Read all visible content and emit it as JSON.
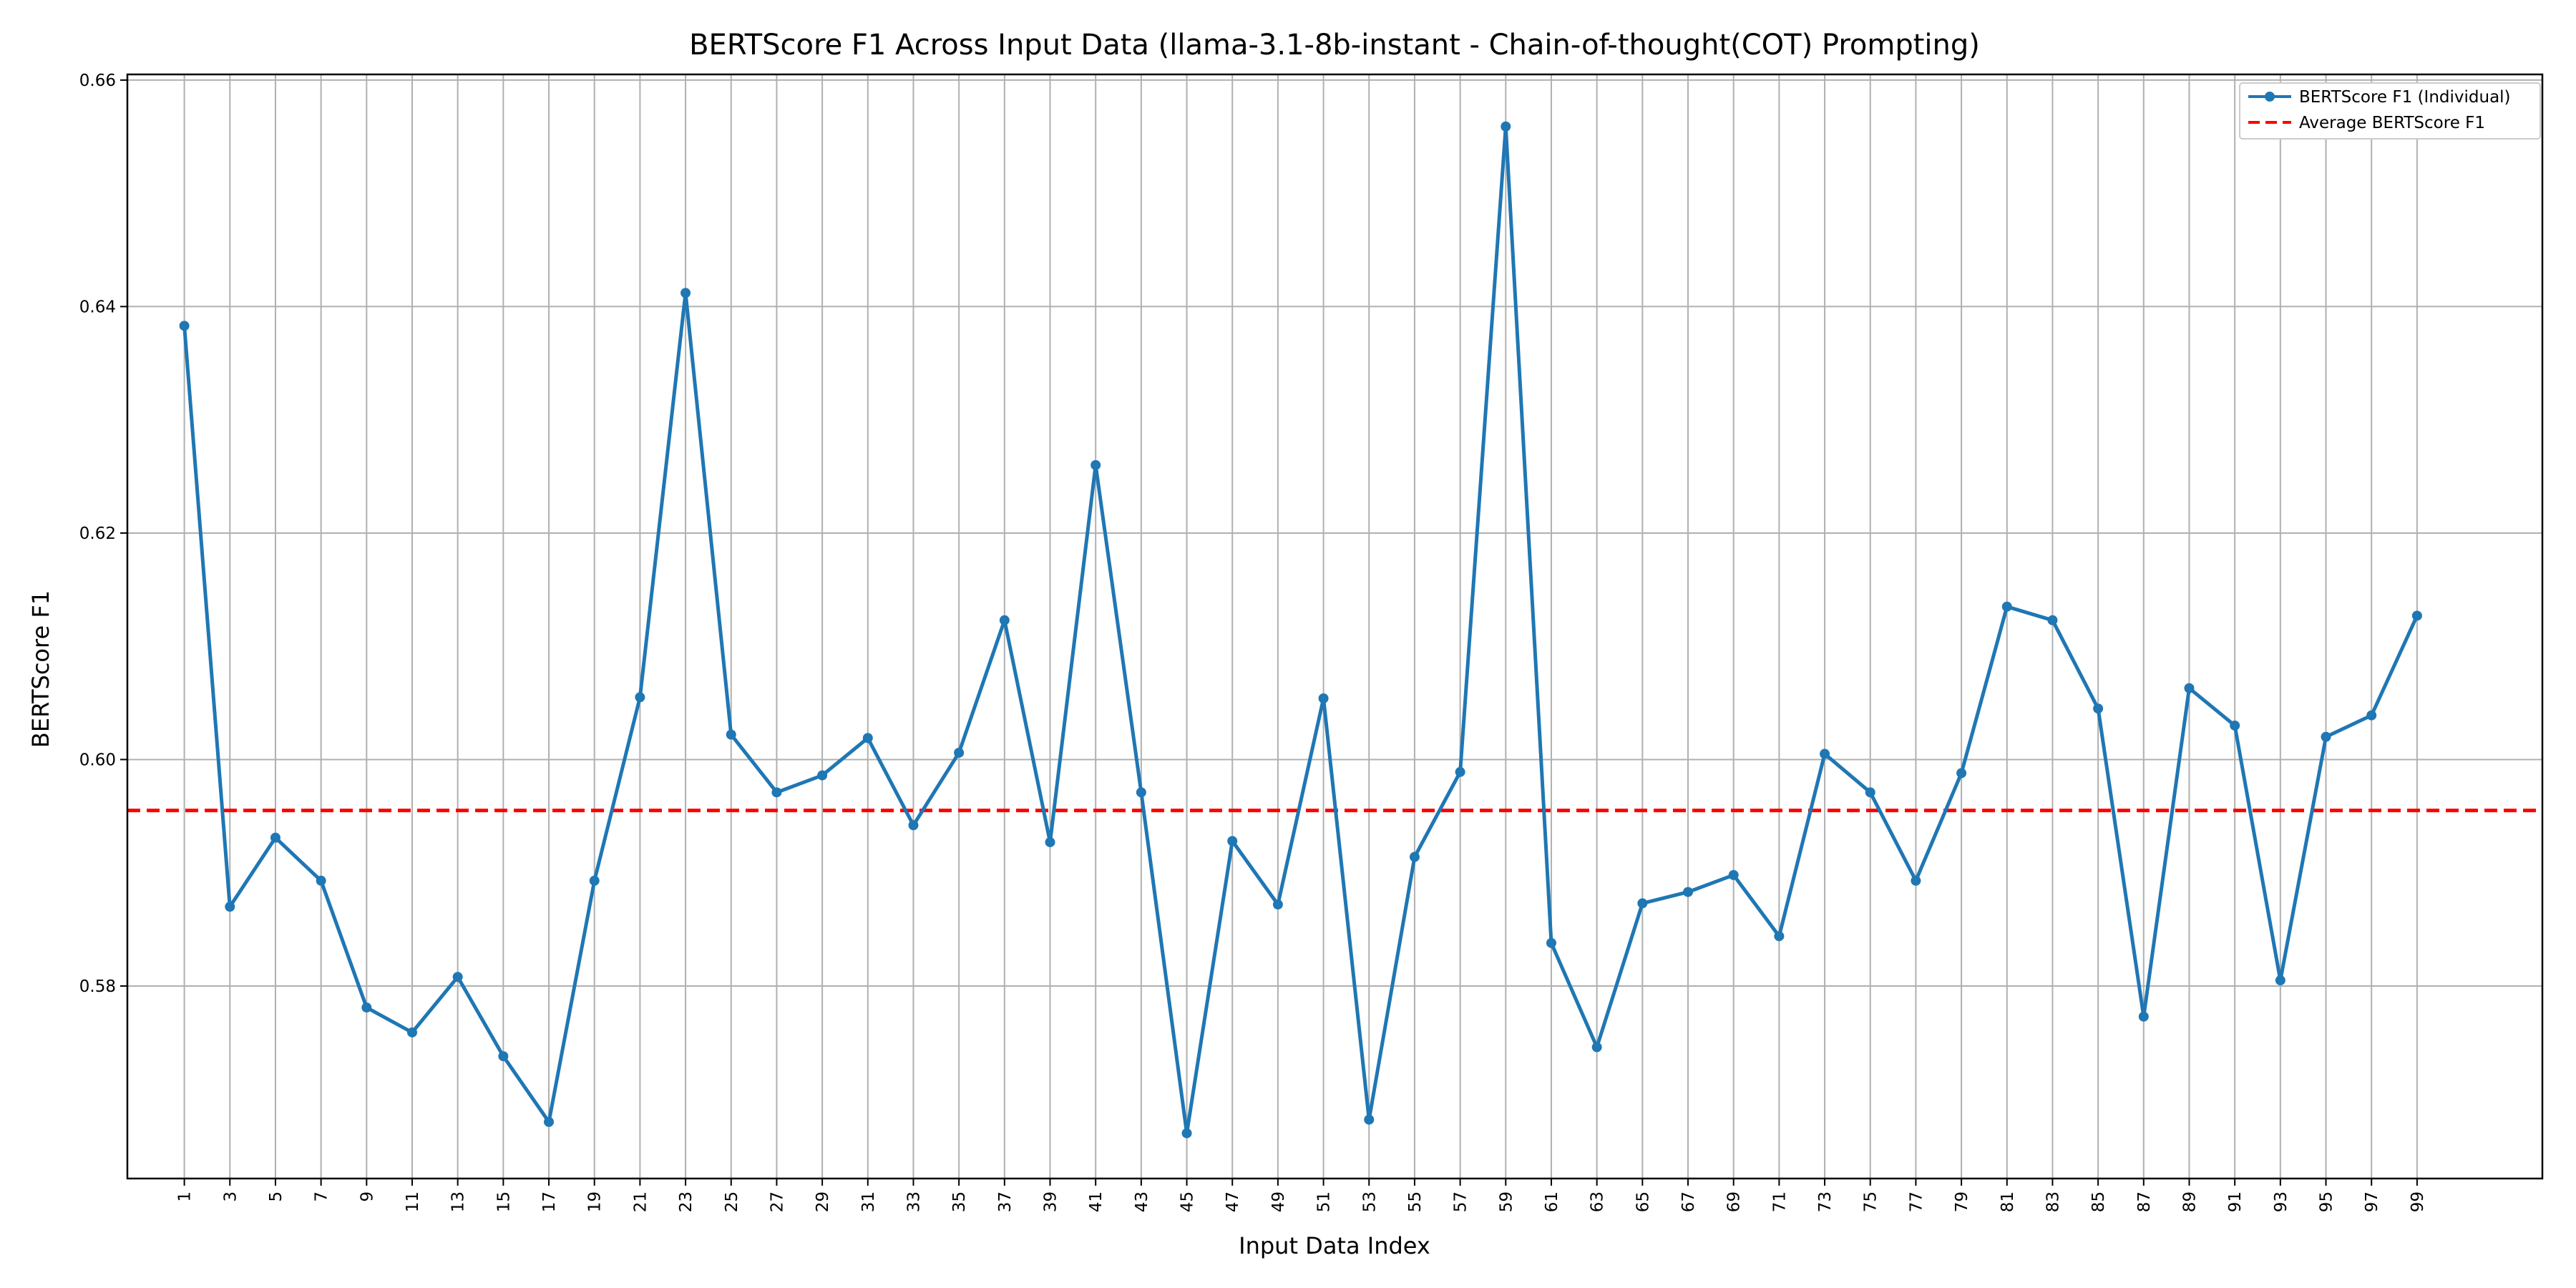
{
  "chart_data": {
    "type": "line",
    "title": "BERTScore F1 Across Input Data (llama-3.1-8b-instant - Chain-of-thought(COT) Prompting)",
    "xlabel": "Input Data Index",
    "ylabel": "BERTScore F1",
    "xlim": [
      -1.5,
      104.5
    ],
    "ylim": [
      0.563,
      0.6605
    ],
    "x_ticks": [
      1,
      3,
      5,
      7,
      9,
      11,
      13,
      15,
      17,
      19,
      21,
      23,
      25,
      27,
      29,
      31,
      33,
      35,
      37,
      39,
      41,
      43,
      45,
      47,
      49,
      51,
      53,
      55,
      57,
      59,
      61,
      63,
      65,
      67,
      69,
      71,
      73,
      75,
      77,
      79,
      81,
      83,
      85,
      87,
      89,
      91,
      93,
      95,
      97,
      99
    ],
    "y_ticks": [
      0.58,
      0.6,
      0.62,
      0.64,
      0.66
    ],
    "y_tick_labels": [
      "0.58",
      "0.60",
      "0.62",
      "0.64",
      "0.66"
    ],
    "grid": true,
    "legend_position": "top-right",
    "colors": {
      "line": "#1f77b4",
      "average": "#ff0000",
      "grid": "#b0b0b0"
    },
    "series": [
      {
        "name": "BERTScore F1 (Individual)",
        "x": [
          1,
          3,
          5,
          7,
          9,
          11,
          13,
          15,
          17,
          19,
          21,
          23,
          25,
          27,
          29,
          31,
          33,
          35,
          37,
          39,
          41,
          43,
          45,
          47,
          49,
          51,
          53,
          55,
          57,
          59,
          61,
          63,
          65,
          67,
          69,
          71,
          73,
          75,
          77,
          79,
          81,
          83,
          85,
          87,
          89,
          91,
          93,
          95,
          97,
          99
        ],
        "values": [
          0.6383,
          0.587,
          0.5931,
          0.5893,
          0.5781,
          0.5759,
          0.5808,
          0.5738,
          0.568,
          0.5893,
          0.6055,
          0.6412,
          0.6022,
          0.5971,
          0.5986,
          0.6019,
          0.5942,
          0.6006,
          0.6123,
          0.5927,
          0.626,
          0.5971,
          0.567,
          0.5928,
          0.5872,
          0.6054,
          0.5682,
          0.5914,
          0.5989,
          0.6559,
          0.5838,
          0.5746,
          0.5873,
          0.5883,
          0.5898,
          0.5844,
          0.6005,
          0.5971,
          0.5893,
          0.5988,
          0.6135,
          0.6123,
          0.6045,
          0.5773,
          0.6063,
          0.603,
          0.5805,
          0.602,
          0.6039,
          0.6127
        ]
      },
      {
        "name": "Average BERTScore F1",
        "value": 0.5955,
        "style": "dashed"
      }
    ]
  }
}
